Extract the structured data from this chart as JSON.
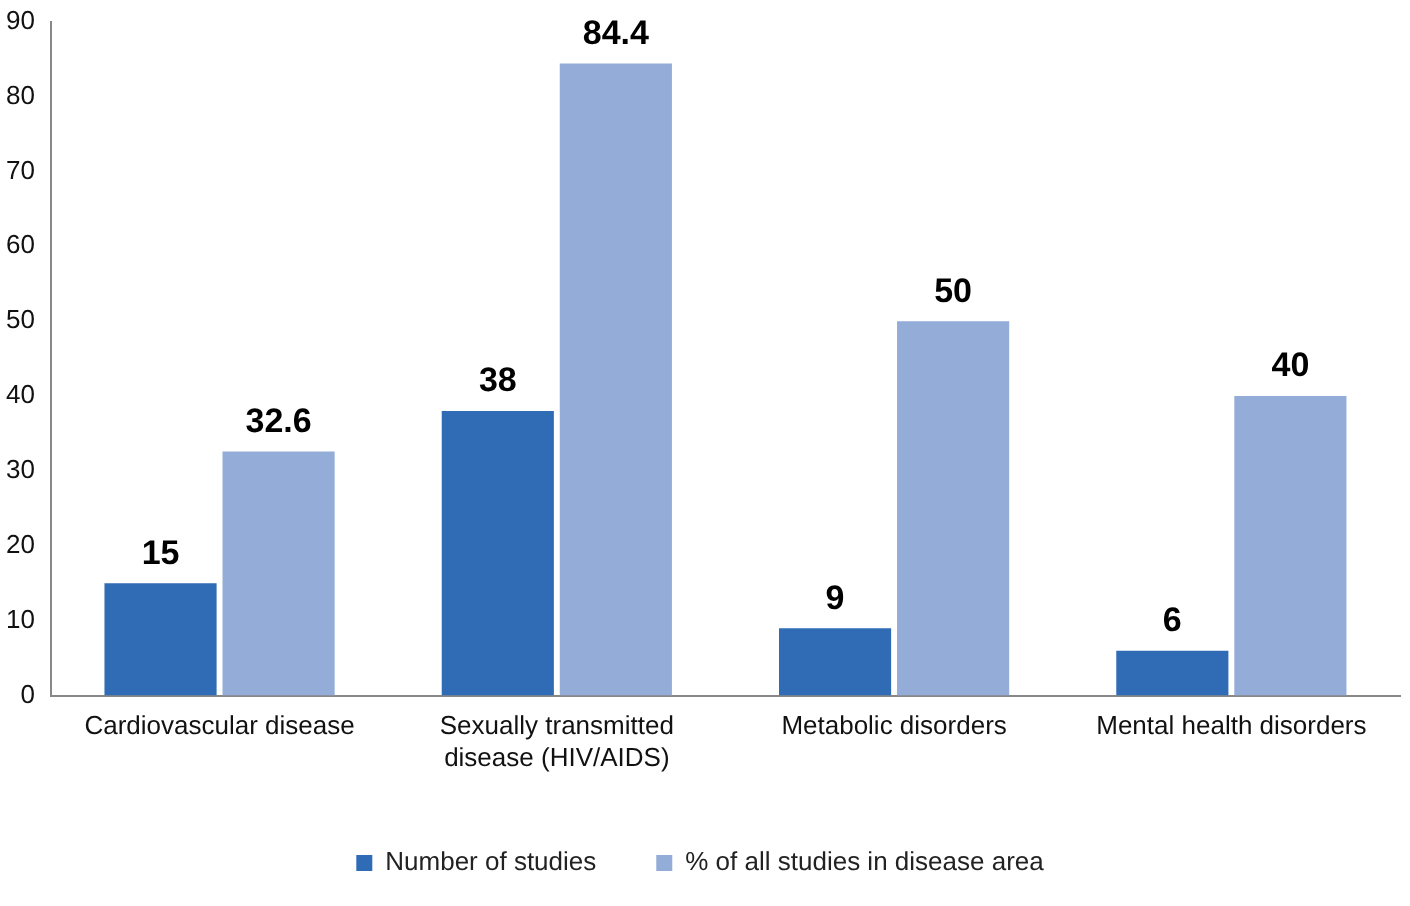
{
  "chart_data": {
    "type": "bar",
    "categories": [
      "Cardiovascular disease",
      "Sexually transmitted disease (HIV/AIDS)",
      "Metabolic disorders",
      "Mental health disorders"
    ],
    "series": [
      {
        "name": "Number of studies",
        "color": "#2f6cb5",
        "values": [
          15,
          38,
          9,
          6
        ]
      },
      {
        "name": "% of all studies in disease area",
        "color": "#93acd8",
        "values": [
          32.6,
          84.4,
          50,
          40
        ]
      }
    ],
    "ylim": [
      0,
      90
    ],
    "yticks": [
      0,
      10,
      20,
      30,
      40,
      50,
      60,
      70,
      80,
      90
    ],
    "grid": false,
    "legend": "bottom",
    "data_labels": true
  }
}
